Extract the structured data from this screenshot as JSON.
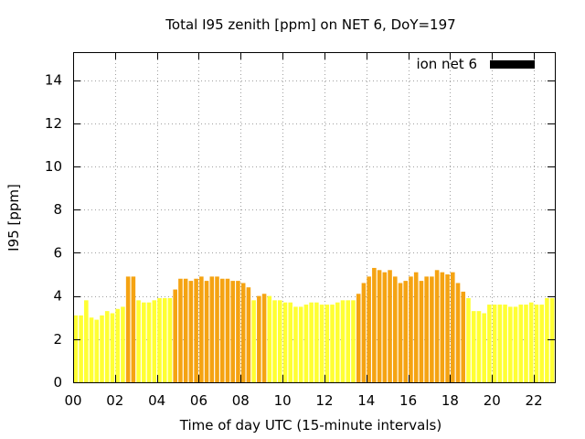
{
  "chart_data": {
    "type": "bar",
    "title": "Total I95 zenith [ppm] on NET 6, DoY=197",
    "xlabel": "Time of day UTC (15-minute intervals)",
    "ylabel": "I95 [ppm]",
    "ylim": [
      0,
      15.3
    ],
    "xlim": [
      0,
      23
    ],
    "y_ticks": [
      0,
      2,
      4,
      6,
      8,
      10,
      12,
      14
    ],
    "y_tick_labels": [
      "0",
      "2",
      "4",
      "6",
      "8",
      "10",
      "12",
      "14"
    ],
    "x_ticks": [
      0,
      2,
      4,
      6,
      8,
      10,
      12,
      14,
      16,
      18,
      20,
      22
    ],
    "x_tick_labels": [
      "00",
      "02",
      "04",
      "06",
      "08",
      "10",
      "12",
      "14",
      "16",
      "18",
      "20",
      "22"
    ],
    "grid": true,
    "legend": {
      "label": "ion net 6",
      "color": "#000000",
      "placement": "top-right"
    },
    "colors": {
      "low": "#ffff33",
      "high": "#f5a312"
    },
    "interval_hours": 0.25,
    "values": [
      3.1,
      3.1,
      3.8,
      3.0,
      2.9,
      3.1,
      3.3,
      3.2,
      3.4,
      3.5,
      4.9,
      4.9,
      3.8,
      3.7,
      3.7,
      3.8,
      3.9,
      3.9,
      3.9,
      4.3,
      4.8,
      4.8,
      4.7,
      4.8,
      4.9,
      4.7,
      4.9,
      4.9,
      4.8,
      4.8,
      4.7,
      4.7,
      4.6,
      4.4,
      3.8,
      4.0,
      4.1,
      4.0,
      3.8,
      3.8,
      3.7,
      3.7,
      3.5,
      3.5,
      3.6,
      3.7,
      3.7,
      3.6,
      3.6,
      3.6,
      3.7,
      3.8,
      3.8,
      3.8,
      4.1,
      4.6,
      4.9,
      5.3,
      5.2,
      5.1,
      5.2,
      4.9,
      4.6,
      4.7,
      4.9,
      5.1,
      4.7,
      4.9,
      4.9,
      5.2,
      5.1,
      5.0,
      5.1,
      4.6,
      4.2,
      3.9,
      3.3,
      3.3,
      3.2,
      3.6,
      3.6,
      3.6,
      3.6,
      3.5,
      3.5,
      3.6,
      3.6,
      3.7,
      3.6,
      3.6,
      3.9,
      3.9
    ],
    "high_flags": [
      0,
      0,
      0,
      0,
      0,
      0,
      0,
      0,
      0,
      0,
      1,
      1,
      0,
      0,
      0,
      0,
      0,
      0,
      0,
      1,
      1,
      1,
      1,
      1,
      1,
      1,
      1,
      1,
      1,
      1,
      1,
      1,
      1,
      1,
      0,
      1,
      1,
      0,
      0,
      0,
      0,
      0,
      0,
      0,
      0,
      0,
      0,
      0,
      0,
      0,
      0,
      0,
      0,
      0,
      1,
      1,
      1,
      1,
      1,
      1,
      1,
      1,
      1,
      1,
      1,
      1,
      1,
      1,
      1,
      1,
      1,
      1,
      1,
      1,
      1,
      0,
      0,
      0,
      0,
      0,
      0,
      0,
      0,
      0,
      0,
      0,
      0,
      0,
      0,
      0,
      0,
      0
    ]
  }
}
